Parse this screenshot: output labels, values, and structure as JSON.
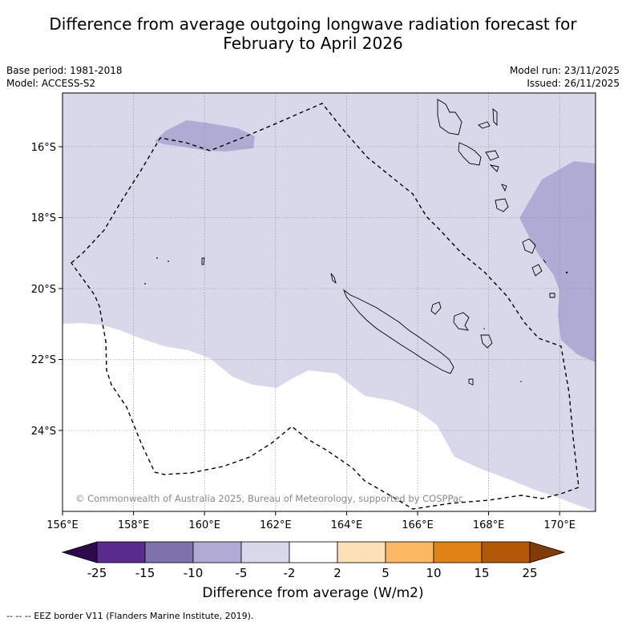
{
  "title": {
    "line1": "Difference from average outgoing longwave radiation forecast for",
    "line2": "February to April 2026"
  },
  "meta_left": {
    "base_period": "Base period: 1981-2018",
    "model": "Model: ACCESS-S2"
  },
  "meta_right": {
    "model_run": "Model run: 23/11/2025",
    "issued": "Issued: 26/11/2025"
  },
  "map": {
    "lon_range": [
      156,
      171
    ],
    "lat_range": [
      -26.2,
      -14.5
    ],
    "lon_ticks": [
      "156°E",
      "158°E",
      "160°E",
      "162°E",
      "164°E",
      "166°E",
      "168°E",
      "170°E"
    ],
    "lat_ticks": [
      "16°S",
      "18°S",
      "20°S",
      "22°S",
      "24°S"
    ],
    "copyright": "© Commonwealth of Australia 2025, Bureau of Meteorology, supported by COSPPac"
  },
  "colorbar": {
    "ticks": [
      "-25",
      "-15",
      "-10",
      "-5",
      "-2",
      "2",
      "5",
      "10",
      "15",
      "25"
    ],
    "colors": [
      "#2d0a4e",
      "#5a2a8c",
      "#7e72ad",
      "#b1aad4",
      "#d9d8ea",
      "#ffffff",
      "#fee0b6",
      "#fdb863",
      "#e08214",
      "#b35806",
      "#7f3b08"
    ],
    "label": "Difference from average (W/m2)"
  },
  "legend": {
    "eez": "--  --  -- EEZ border V11 (Flanders Marine Institute, 2019)."
  }
}
